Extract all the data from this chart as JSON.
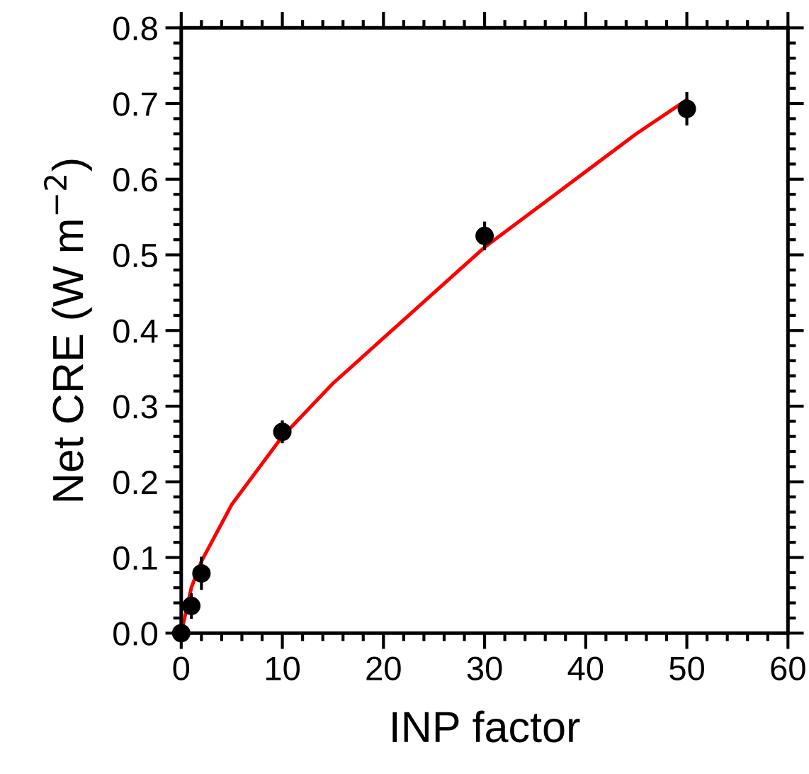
{
  "chart_data": {
    "type": "scatter",
    "xlabel": "INP factor",
    "ylabel": "Net CRE (W m$^{−2}$)",
    "xlim": [
      0,
      60
    ],
    "ylim": [
      0,
      0.8
    ],
    "xticks": [
      0,
      {
        "value": 2,
        "label": null
      },
      {
        "value": 4,
        "label": null
      },
      {
        "value": 6,
        "label": null
      },
      {
        "value": 8,
        "label": null
      },
      10,
      {
        "value": 12,
        "label": null
      },
      {
        "value": 14,
        "label": null
      },
      {
        "value": 16,
        "label": null
      },
      {
        "value": 18,
        "label": null
      },
      20,
      {
        "value": 22,
        "label": null
      },
      {
        "value": 24,
        "label": null
      },
      {
        "value": 26,
        "label": null
      },
      {
        "value": 28,
        "label": null
      },
      30,
      {
        "value": 32,
        "label": null
      },
      {
        "value": 34,
        "label": null
      },
      {
        "value": 36,
        "label": null
      },
      {
        "value": 38,
        "label": null
      },
      40,
      {
        "value": 42,
        "label": null
      },
      {
        "value": 44,
        "label": null
      },
      {
        "value": 46,
        "label": null
      },
      {
        "value": 48,
        "label": null
      },
      50,
      {
        "value": 52,
        "label": null
      },
      {
        "value": 54,
        "label": null
      },
      {
        "value": 56,
        "label": null
      },
      {
        "value": 58,
        "label": null
      },
      60
    ],
    "yticks": [
      {
        "value": 0,
        "label": "0.0"
      },
      {
        "value": 0.02,
        "label": null
      },
      {
        "value": 0.04,
        "label": null
      },
      {
        "value": 0.06,
        "label": null
      },
      {
        "value": 0.08,
        "label": null
      },
      0.1,
      {
        "value": 0.12,
        "label": null
      },
      {
        "value": 0.14,
        "label": null
      },
      {
        "value": 0.16,
        "label": null
      },
      {
        "value": 0.18,
        "label": null
      },
      0.2,
      {
        "value": 0.22,
        "label": null
      },
      {
        "value": 0.24,
        "label": null
      },
      {
        "value": 0.26,
        "label": null
      },
      {
        "value": 0.28,
        "label": null
      },
      0.3,
      {
        "value": 0.32,
        "label": null
      },
      {
        "value": 0.34,
        "label": null
      },
      {
        "value": 0.36,
        "label": null
      },
      {
        "value": 0.38,
        "label": null
      },
      0.4,
      {
        "value": 0.42,
        "label": null
      },
      {
        "value": 0.44,
        "label": null
      },
      {
        "value": 0.46,
        "label": null
      },
      {
        "value": 0.48,
        "label": null
      },
      0.5,
      {
        "value": 0.52,
        "label": null
      },
      {
        "value": 0.54,
        "label": null
      },
      {
        "value": 0.56,
        "label": null
      },
      {
        "value": 0.58,
        "label": null
      },
      0.6,
      {
        "value": 0.62,
        "label": null
      },
      {
        "value": 0.64,
        "label": null
      },
      {
        "value": 0.66,
        "label": null
      },
      {
        "value": 0.68,
        "label": null
      },
      0.7,
      {
        "value": 0.72,
        "label": null
      },
      {
        "value": 0.74,
        "label": null
      },
      {
        "value": 0.76,
        "label": null
      },
      {
        "value": 0.78,
        "label": null
      },
      0.8
    ],
    "grid": false,
    "legend": false,
    "series": [
      {
        "marker": "circle",
        "color": "#000000",
        "x": [
          0,
          1,
          2,
          10,
          30,
          50
        ],
        "values": [
          0.0,
          0.036,
          0.079,
          0.266,
          0.525,
          0.693
        ],
        "errors": [
          null,
          0.015,
          0.02,
          0.013,
          0.017,
          0.02
        ]
      },
      {
        "type": "line",
        "color": "#ff0000",
        "marker": "none",
        "line_style": "solid",
        "x": [
          0,
          1,
          2,
          5,
          10,
          15,
          20,
          25,
          30,
          35,
          40,
          45,
          50
        ],
        "values": [
          0.0,
          0.06,
          0.095,
          0.17,
          0.26,
          0.33,
          0.39,
          0.45,
          0.51,
          0.56,
          0.61,
          0.66,
          0.705
        ]
      }
    ]
  }
}
